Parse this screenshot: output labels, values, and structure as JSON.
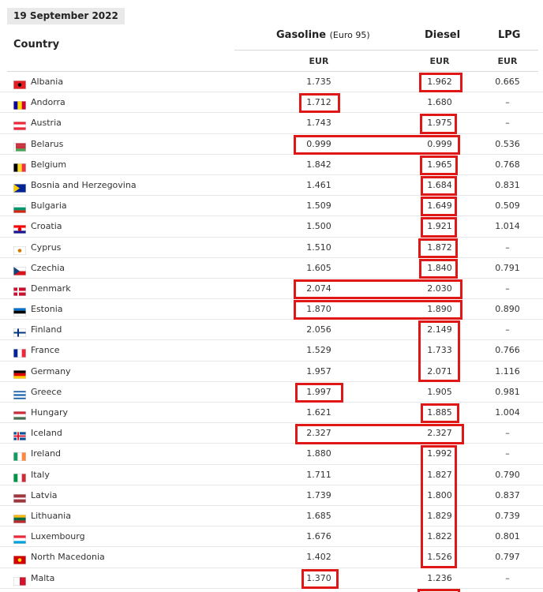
{
  "date": "19 September 2022",
  "headers": {
    "country": "Country",
    "gasoline": "Gasoline",
    "gasoline_note": "(Euro 95)",
    "diesel": "Diesel",
    "lpg": "LPG",
    "currency": "EUR"
  },
  "rows": [
    {
      "country": "Albania",
      "gasoline": "1.735",
      "diesel": "1.962",
      "lpg": "0.665",
      "flag": "albania-flag-icon"
    },
    {
      "country": "Andorra",
      "gasoline": "1.712",
      "diesel": "1.680",
      "lpg": "–",
      "flag": "andorra-flag-icon"
    },
    {
      "country": "Austria",
      "gasoline": "1.743",
      "diesel": "1.975",
      "lpg": "–",
      "flag": "austria-flag-icon"
    },
    {
      "country": "Belarus",
      "gasoline": "0.999",
      "diesel": "0.999",
      "lpg": "0.536",
      "flag": "belarus-flag-icon"
    },
    {
      "country": "Belgium",
      "gasoline": "1.842",
      "diesel": "1.965",
      "lpg": "0.768",
      "flag": "belgium-flag-icon"
    },
    {
      "country": "Bosnia and Herzegovina",
      "gasoline": "1.461",
      "diesel": "1.684",
      "lpg": "0.831",
      "flag": "bosnia-flag-icon"
    },
    {
      "country": "Bulgaria",
      "gasoline": "1.509",
      "diesel": "1.649",
      "lpg": "0.509",
      "flag": "bulgaria-flag-icon"
    },
    {
      "country": "Croatia",
      "gasoline": "1.500",
      "diesel": "1.921",
      "lpg": "1.014",
      "flag": "croatia-flag-icon"
    },
    {
      "country": "Cyprus",
      "gasoline": "1.510",
      "diesel": "1.872",
      "lpg": "–",
      "flag": "cyprus-flag-icon"
    },
    {
      "country": "Czechia",
      "gasoline": "1.605",
      "diesel": "1.840",
      "lpg": "0.791",
      "flag": "czechia-flag-icon"
    },
    {
      "country": "Denmark",
      "gasoline": "2.074",
      "diesel": "2.030",
      "lpg": "–",
      "flag": "denmark-flag-icon"
    },
    {
      "country": "Estonia",
      "gasoline": "1.870",
      "diesel": "1.890",
      "lpg": "0.890",
      "flag": "estonia-flag-icon"
    },
    {
      "country": "Finland",
      "gasoline": "2.056",
      "diesel": "2.149",
      "lpg": "–",
      "flag": "finland-flag-icon"
    },
    {
      "country": "France",
      "gasoline": "1.529",
      "diesel": "1.733",
      "lpg": "0.766",
      "flag": "france-flag-icon"
    },
    {
      "country": "Germany",
      "gasoline": "1.957",
      "diesel": "2.071",
      "lpg": "1.116",
      "flag": "germany-flag-icon"
    },
    {
      "country": "Greece",
      "gasoline": "1.997",
      "diesel": "1.905",
      "lpg": "0.981",
      "flag": "greece-flag-icon"
    },
    {
      "country": "Hungary",
      "gasoline": "1.621",
      "diesel": "1.885",
      "lpg": "1.004",
      "flag": "hungary-flag-icon"
    },
    {
      "country": "Iceland",
      "gasoline": "2.327",
      "diesel": "2.327",
      "lpg": "–",
      "flag": "iceland-flag-icon"
    },
    {
      "country": "Ireland",
      "gasoline": "1.880",
      "diesel": "1.992",
      "lpg": "–",
      "flag": "ireland-flag-icon"
    },
    {
      "country": "Italy",
      "gasoline": "1.711",
      "diesel": "1.827",
      "lpg": "0.790",
      "flag": "italy-flag-icon"
    },
    {
      "country": "Latvia",
      "gasoline": "1.739",
      "diesel": "1.800",
      "lpg": "0.837",
      "flag": "latvia-flag-icon"
    },
    {
      "country": "Lithuania",
      "gasoline": "1.685",
      "diesel": "1.829",
      "lpg": "0.739",
      "flag": "lithuania-flag-icon"
    },
    {
      "country": "Luxembourg",
      "gasoline": "1.676",
      "diesel": "1.822",
      "lpg": "0.801",
      "flag": "luxembourg-flag-icon"
    },
    {
      "country": "North Macedonia",
      "gasoline": "1.402",
      "diesel": "1.526",
      "lpg": "0.797",
      "flag": "north-macedonia-flag-icon"
    },
    {
      "country": "Malta",
      "gasoline": "1.370",
      "diesel": "1.236",
      "lpg": "–",
      "flag": "malta-flag-icon"
    }
  ],
  "highlight_color": "#e01717"
}
